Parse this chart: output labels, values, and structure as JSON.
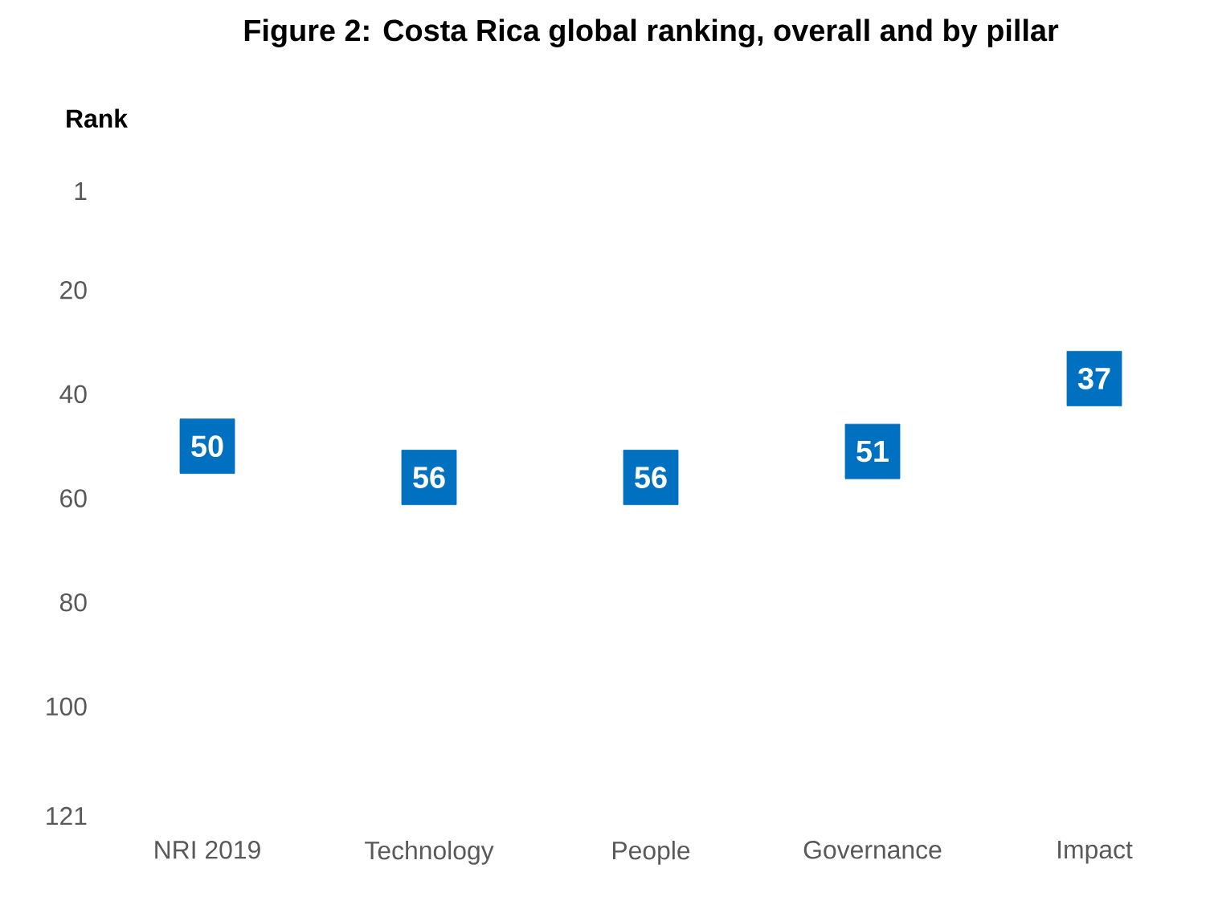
{
  "chart_data": {
    "type": "scatter",
    "title": "Figure 2: Costa Rica global ranking, overall and by pillar",
    "ylabel": "Rank",
    "categories": [
      "NRI 2019",
      "Technology",
      "People",
      "Governance",
      "Impact"
    ],
    "values": [
      50,
      56,
      56,
      51,
      37
    ],
    "color": "#0070c0",
    "marker": "square",
    "data_labels": true,
    "ylim": [
      121,
      1
    ],
    "yticks": [
      1,
      20,
      40,
      60,
      80,
      100,
      121
    ],
    "grid": false
  }
}
